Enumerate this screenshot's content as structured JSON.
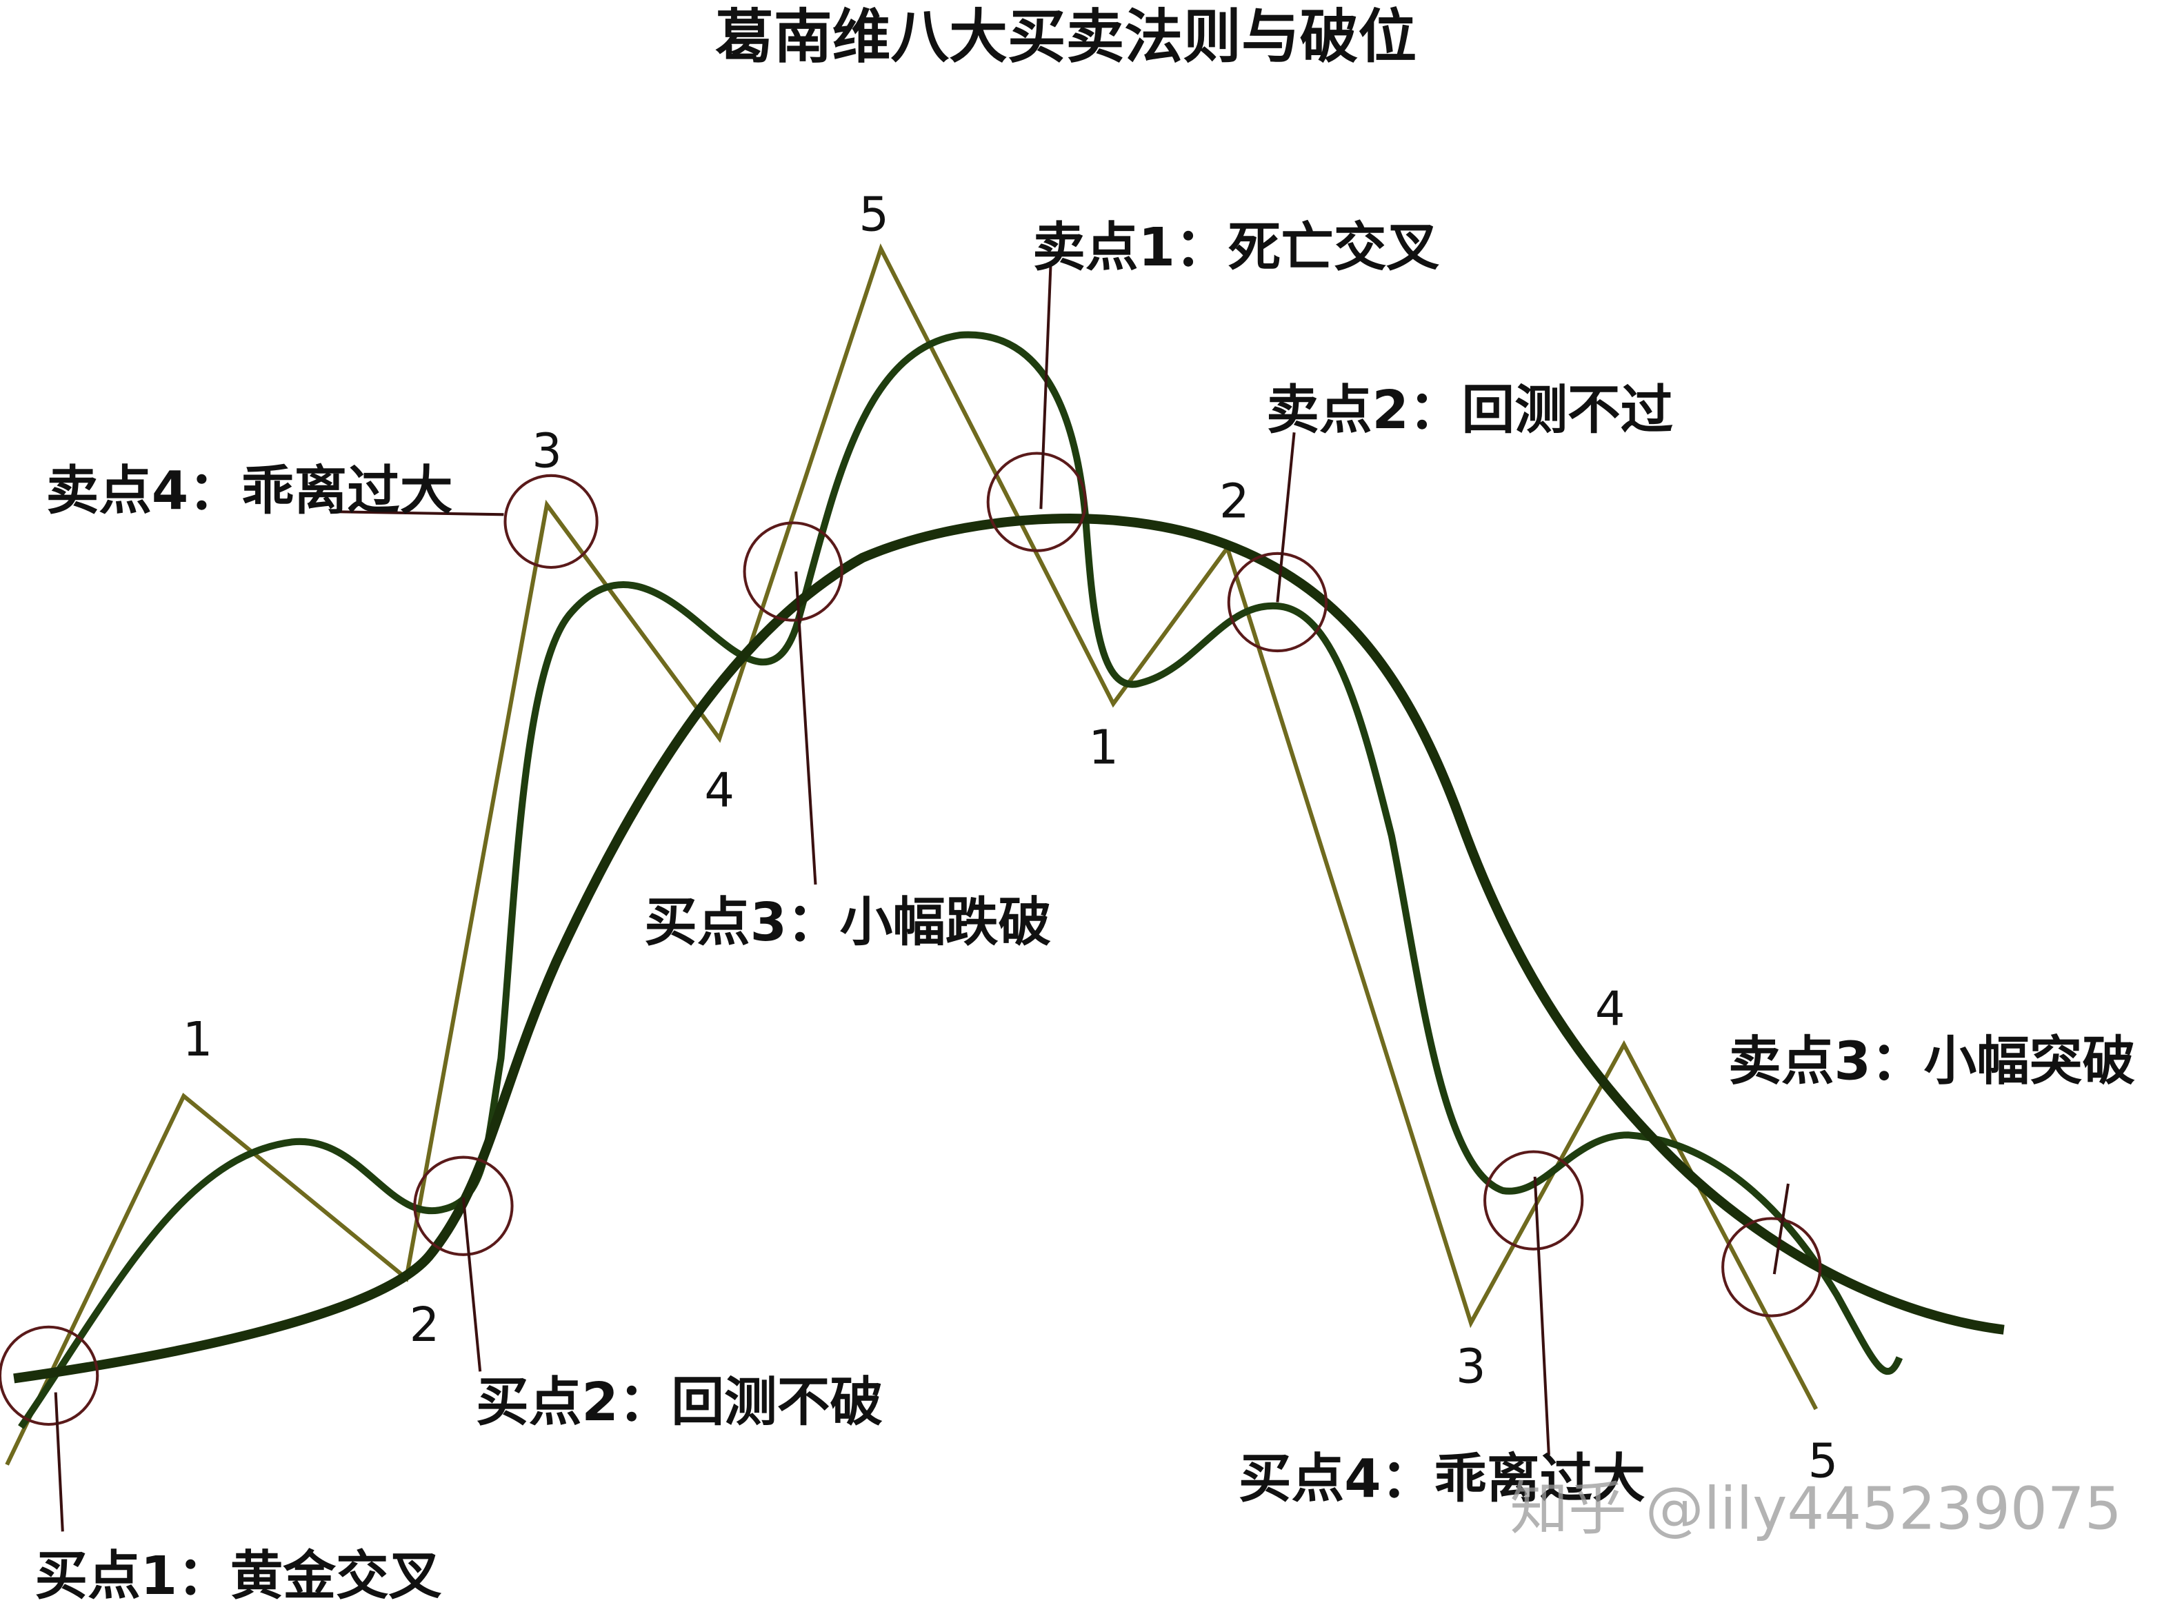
{
  "title": "葛南维八大买卖法则与破位",
  "annotations": [
    "卖点4：乖离过大",
    "卖点1：死亡交叉",
    "卖点2：回测不过",
    "买点3：小幅跌破",
    "卖点3：小幅突破",
    "买点2：回测不破",
    "买点4：乖离过大",
    "买点1：黄金交叉"
  ],
  "wave_labels": [
    "1",
    "2",
    "3",
    "4",
    "5",
    "1",
    "2",
    "3",
    "4",
    "5"
  ],
  "watermark": "知乎 @lily445239075"
}
